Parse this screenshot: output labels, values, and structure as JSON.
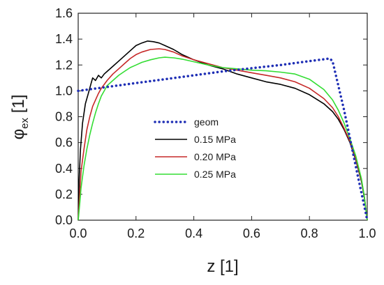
{
  "chart_data": {
    "type": "line",
    "xlabel": "z [1]",
    "ylabel_symbol": "φ",
    "ylabel_sub": "ex",
    "ylabel_unit": " [1]",
    "xlim": [
      0.0,
      1.0
    ],
    "ylim": [
      0.0,
      1.6
    ],
    "xticks": [
      "0.0",
      "0.2",
      "0.4",
      "0.6",
      "0.8",
      "1.0"
    ],
    "yticks": [
      "0.0",
      "0.2",
      "0.4",
      "0.6",
      "0.8",
      "1.0",
      "1.2",
      "1.4",
      "1.6"
    ],
    "legend_position": "center-left",
    "series": [
      {
        "name": "geom",
        "color": "#1f2fb5",
        "style": "dotted",
        "x": [
          0.0,
          0.05,
          0.1,
          0.2,
          0.3,
          0.4,
          0.5,
          0.6,
          0.7,
          0.8,
          0.87,
          0.88,
          0.92,
          0.96,
          1.0
        ],
        "y": [
          1.0,
          1.015,
          1.03,
          1.06,
          1.09,
          1.12,
          1.15,
          1.175,
          1.2,
          1.23,
          1.25,
          1.23,
          0.85,
          0.42,
          0.0
        ]
      },
      {
        "name": "0.15 MPa",
        "color": "#000000",
        "style": "solid",
        "x": [
          0.0,
          0.003,
          0.008,
          0.015,
          0.025,
          0.035,
          0.045,
          0.05,
          0.06,
          0.07,
          0.08,
          0.09,
          0.1,
          0.12,
          0.14,
          0.16,
          0.18,
          0.2,
          0.22,
          0.24,
          0.26,
          0.28,
          0.3,
          0.33,
          0.36,
          0.4,
          0.45,
          0.5,
          0.55,
          0.6,
          0.65,
          0.7,
          0.75,
          0.8,
          0.85,
          0.88,
          0.9,
          0.92,
          0.94,
          0.96,
          0.98,
          0.99,
          1.0
        ],
        "y": [
          0.0,
          0.3,
          0.55,
          0.75,
          0.9,
          0.98,
          1.06,
          1.1,
          1.08,
          1.12,
          1.1,
          1.13,
          1.15,
          1.19,
          1.23,
          1.27,
          1.31,
          1.35,
          1.37,
          1.385,
          1.38,
          1.37,
          1.35,
          1.32,
          1.28,
          1.24,
          1.2,
          1.17,
          1.13,
          1.1,
          1.07,
          1.05,
          1.02,
          0.97,
          0.9,
          0.84,
          0.78,
          0.7,
          0.6,
          0.47,
          0.3,
          0.17,
          0.0
        ]
      },
      {
        "name": "0.20 MPa",
        "color": "#c62828",
        "style": "solid",
        "x": [
          0.0,
          0.005,
          0.01,
          0.02,
          0.03,
          0.04,
          0.05,
          0.06,
          0.07,
          0.08,
          0.09,
          0.1,
          0.12,
          0.14,
          0.16,
          0.18,
          0.2,
          0.22,
          0.25,
          0.28,
          0.3,
          0.33,
          0.36,
          0.4,
          0.45,
          0.5,
          0.55,
          0.6,
          0.65,
          0.7,
          0.75,
          0.8,
          0.85,
          0.88,
          0.9,
          0.92,
          0.94,
          0.96,
          0.98,
          0.99,
          1.0
        ],
        "y": [
          0.0,
          0.2,
          0.38,
          0.55,
          0.7,
          0.8,
          0.88,
          0.93,
          0.98,
          1.02,
          1.05,
          1.08,
          1.13,
          1.17,
          1.21,
          1.25,
          1.28,
          1.3,
          1.32,
          1.325,
          1.32,
          1.3,
          1.27,
          1.24,
          1.21,
          1.18,
          1.16,
          1.14,
          1.12,
          1.1,
          1.07,
          1.02,
          0.94,
          0.87,
          0.8,
          0.71,
          0.61,
          0.48,
          0.31,
          0.18,
          0.0
        ]
      },
      {
        "name": "0.25 MPa",
        "color": "#33dd33",
        "style": "solid",
        "x": [
          0.0,
          0.005,
          0.01,
          0.02,
          0.03,
          0.04,
          0.05,
          0.06,
          0.07,
          0.08,
          0.09,
          0.1,
          0.12,
          0.14,
          0.16,
          0.18,
          0.2,
          0.22,
          0.25,
          0.28,
          0.3,
          0.33,
          0.36,
          0.4,
          0.45,
          0.5,
          0.55,
          0.6,
          0.65,
          0.7,
          0.75,
          0.8,
          0.85,
          0.88,
          0.9,
          0.92,
          0.94,
          0.96,
          0.98,
          0.99,
          1.0
        ],
        "y": [
          0.0,
          0.12,
          0.25,
          0.42,
          0.55,
          0.66,
          0.75,
          0.83,
          0.9,
          0.96,
          1.0,
          1.04,
          1.08,
          1.12,
          1.15,
          1.18,
          1.2,
          1.22,
          1.24,
          1.255,
          1.26,
          1.255,
          1.245,
          1.225,
          1.2,
          1.18,
          1.17,
          1.16,
          1.155,
          1.145,
          1.13,
          1.09,
          1.01,
          0.93,
          0.85,
          0.75,
          0.63,
          0.5,
          0.32,
          0.18,
          0.0
        ]
      }
    ]
  }
}
